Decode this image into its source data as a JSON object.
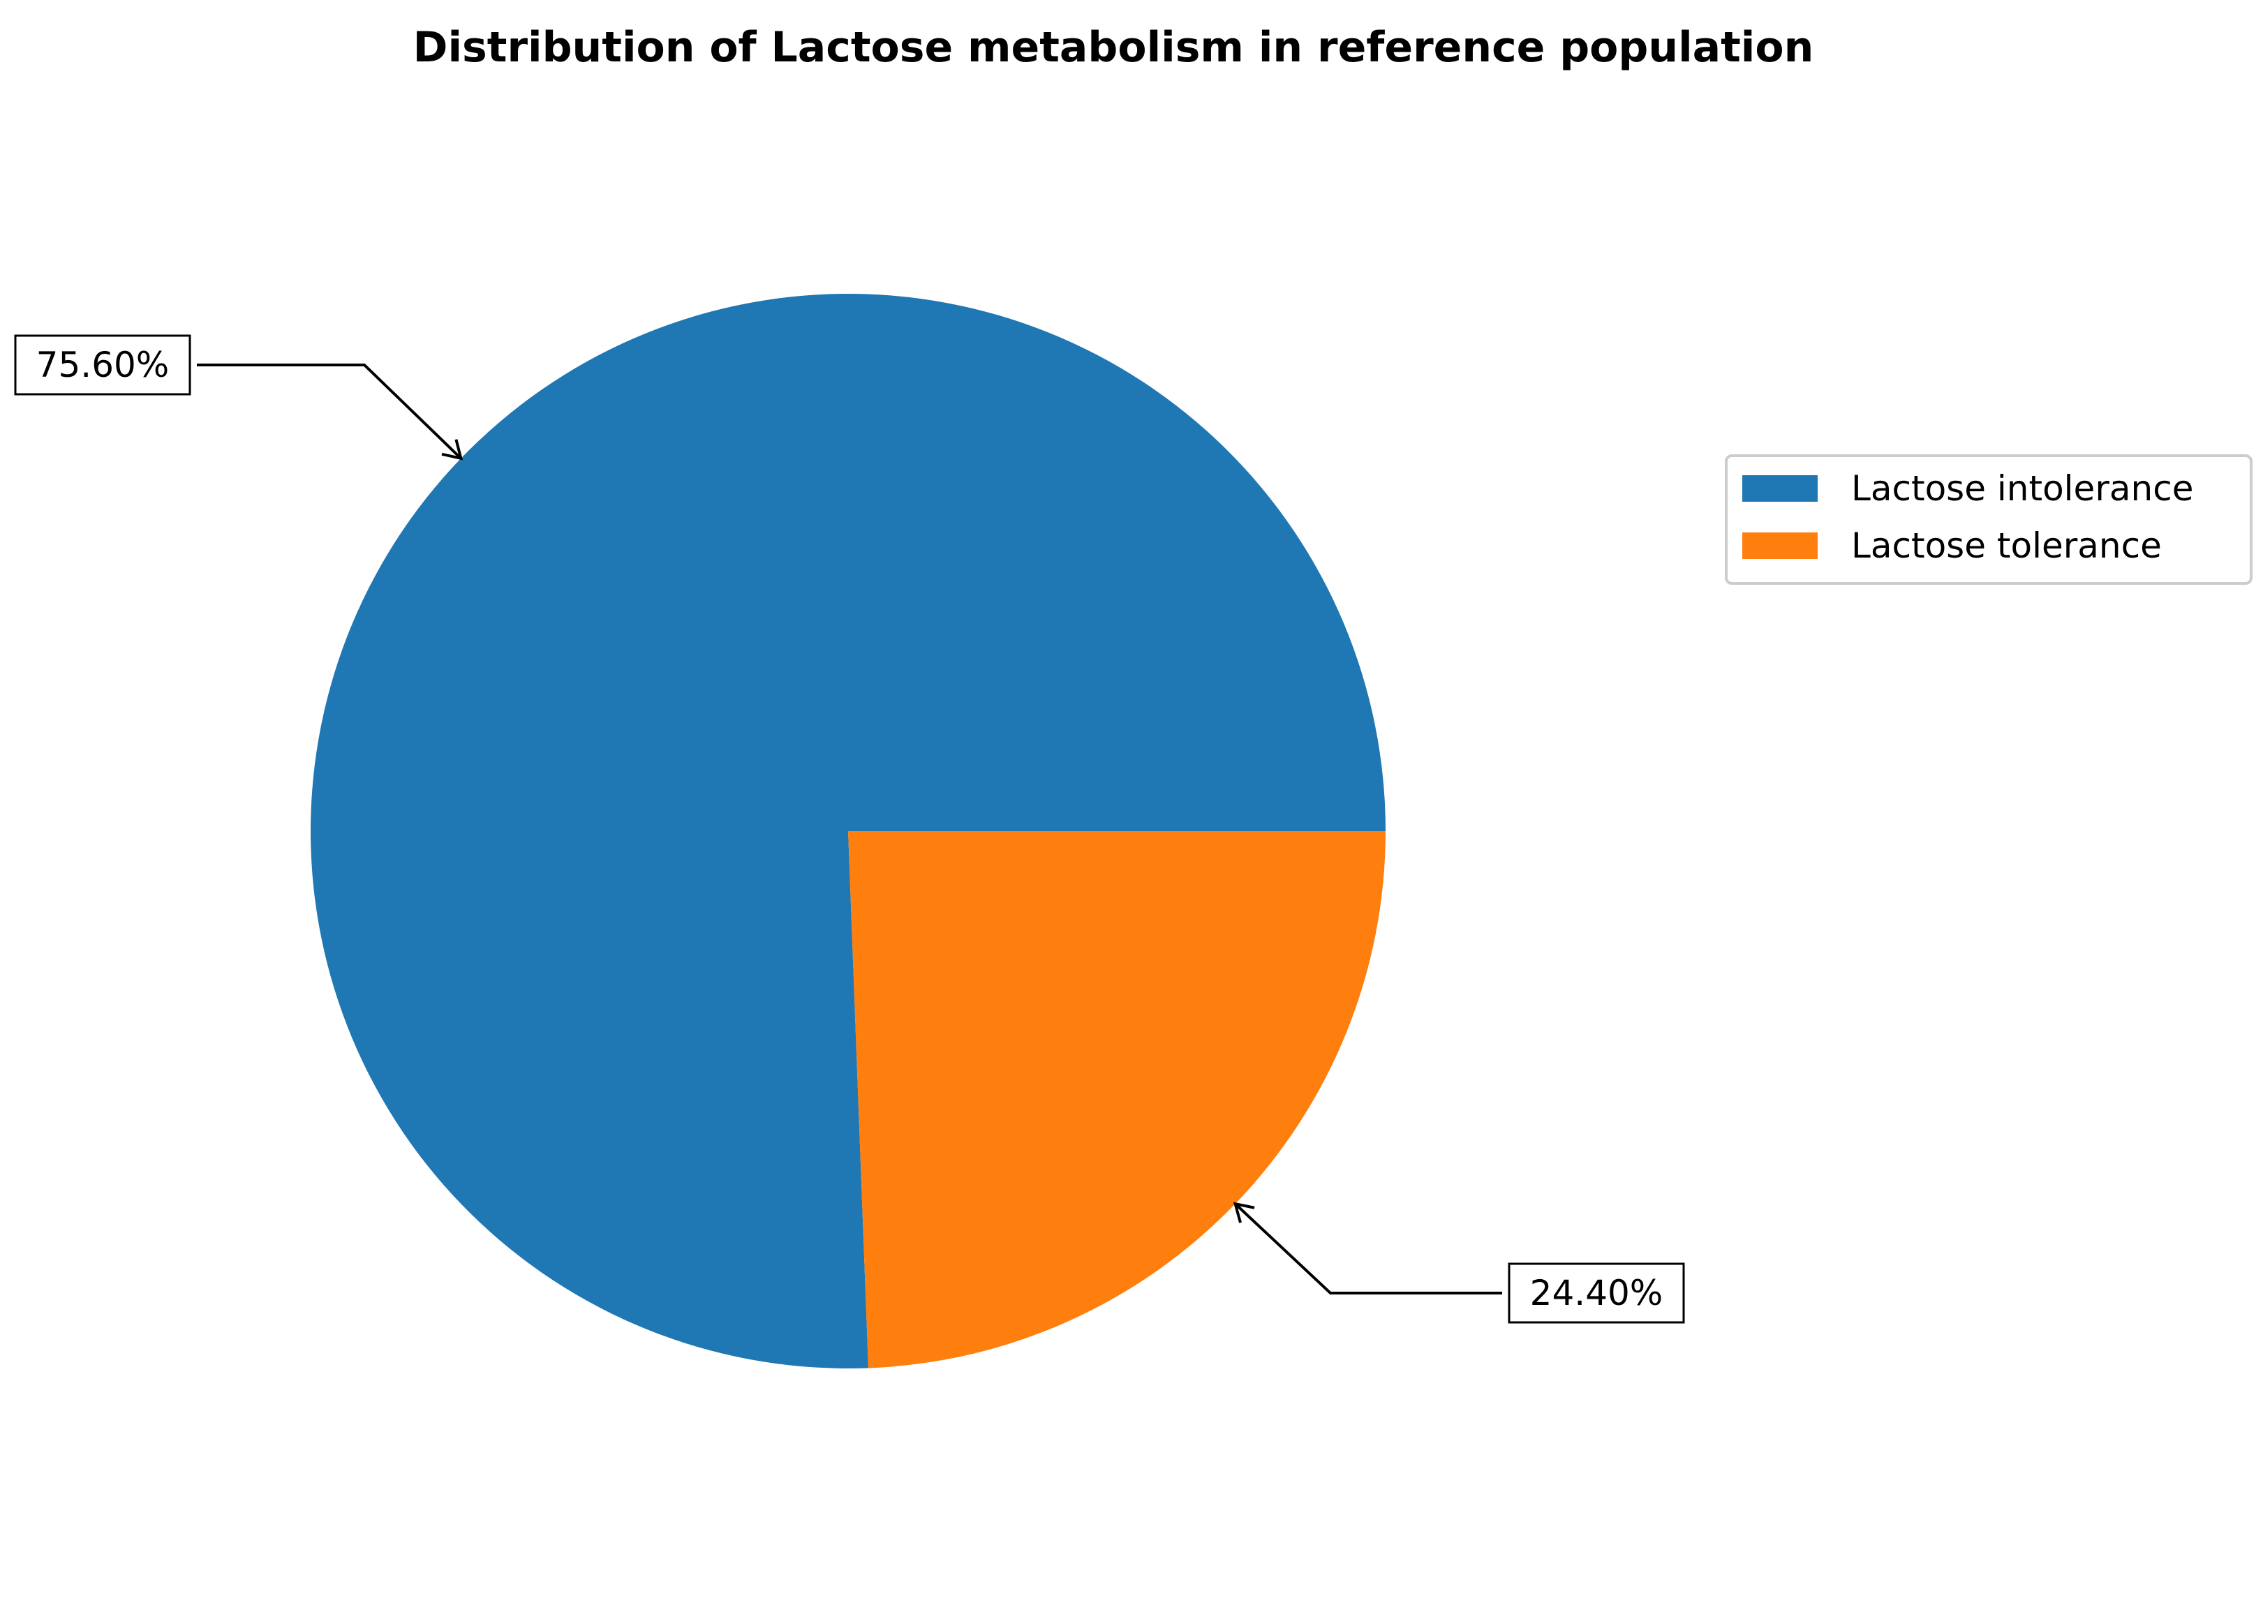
{
  "chart_data": {
    "type": "pie",
    "title": "Distribution of Lactose metabolism in reference population",
    "categories": [
      "Lactose intolerance",
      "Lactose tolerance"
    ],
    "values": [
      75.6,
      24.4
    ],
    "value_labels": [
      "75.60%",
      "24.40%"
    ],
    "colors": [
      "#1f77b4",
      "#ff7f0e"
    ],
    "start_angle_deg": 0,
    "direction": "counterclockwise",
    "legend": {
      "placement": "right",
      "entries": [
        "Lactose intolerance",
        "Lactose tolerance"
      ]
    }
  }
}
